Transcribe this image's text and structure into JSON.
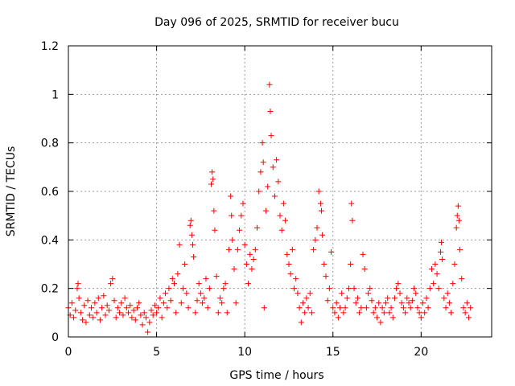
{
  "chart_data": {
    "type": "scatter",
    "title": "Day 096 of 2025, SRMTID for receiver bucu",
    "xlabel": "GPS time / hours",
    "ylabel": "SRMTID / TECUs",
    "xlim": [
      0,
      24
    ],
    "ylim": [
      0,
      1.2
    ],
    "xticks": [
      0,
      5,
      10,
      15,
      20
    ],
    "xtick_labels": [
      "0",
      "5",
      "10",
      "15",
      "20"
    ],
    "yticks": [
      0,
      0.2,
      0.4,
      0.6,
      0.8,
      1.0,
      1.2
    ],
    "ytick_labels": [
      "0",
      "0.2",
      "0.4",
      "0.6",
      "0.8",
      "1",
      "1.2"
    ],
    "grid": true,
    "marker": "+",
    "color": "#ff0000",
    "series": [
      {
        "name": "SRMTID",
        "points": [
          [
            0.0,
            0.12
          ],
          [
            0.1,
            0.09
          ],
          [
            0.2,
            0.14
          ],
          [
            0.3,
            0.08
          ],
          [
            0.4,
            0.11
          ],
          [
            0.5,
            0.2
          ],
          [
            0.55,
            0.22
          ],
          [
            0.6,
            0.16
          ],
          [
            0.7,
            0.1
          ],
          [
            0.8,
            0.07
          ],
          [
            0.9,
            0.13
          ],
          [
            1.0,
            0.06
          ],
          [
            1.1,
            0.15
          ],
          [
            1.2,
            0.09
          ],
          [
            1.3,
            0.12
          ],
          [
            1.4,
            0.08
          ],
          [
            1.5,
            0.14
          ],
          [
            1.6,
            0.1
          ],
          [
            1.7,
            0.16
          ],
          [
            1.8,
            0.07
          ],
          [
            1.9,
            0.12
          ],
          [
            2.0,
            0.17
          ],
          [
            2.1,
            0.09
          ],
          [
            2.2,
            0.13
          ],
          [
            2.3,
            0.11
          ],
          [
            2.4,
            0.22
          ],
          [
            2.5,
            0.24
          ],
          [
            2.6,
            0.15
          ],
          [
            2.7,
            0.08
          ],
          [
            2.8,
            0.12
          ],
          [
            2.9,
            0.1
          ],
          [
            3.0,
            0.14
          ],
          [
            3.1,
            0.09
          ],
          [
            3.2,
            0.16
          ],
          [
            3.3,
            0.12
          ],
          [
            3.4,
            0.1
          ],
          [
            3.5,
            0.13
          ],
          [
            3.6,
            0.08
          ],
          [
            3.7,
            0.11
          ],
          [
            3.8,
            0.07
          ],
          [
            3.9,
            0.12
          ],
          [
            4.0,
            0.14
          ],
          [
            4.1,
            0.09
          ],
          [
            4.2,
            0.05
          ],
          [
            4.3,
            0.1
          ],
          [
            4.4,
            0.08
          ],
          [
            4.5,
            0.02
          ],
          [
            4.6,
            0.06
          ],
          [
            4.7,
            0.11
          ],
          [
            4.8,
            0.09
          ],
          [
            4.9,
            0.13
          ],
          [
            5.0,
            0.1
          ],
          [
            5.1,
            0.12
          ],
          [
            5.2,
            0.16
          ],
          [
            5.3,
            0.08
          ],
          [
            5.4,
            0.14
          ],
          [
            5.5,
            0.18
          ],
          [
            5.6,
            0.12
          ],
          [
            5.7,
            0.2
          ],
          [
            5.8,
            0.15
          ],
          [
            5.9,
            0.24
          ],
          [
            6.0,
            0.22
          ],
          [
            6.1,
            0.1
          ],
          [
            6.2,
            0.26
          ],
          [
            6.3,
            0.38
          ],
          [
            6.4,
            0.14
          ],
          [
            6.5,
            0.2
          ],
          [
            6.6,
            0.3
          ],
          [
            6.7,
            0.18
          ],
          [
            6.8,
            0.12
          ],
          [
            6.9,
            0.46
          ],
          [
            6.95,
            0.48
          ],
          [
            7.0,
            0.42
          ],
          [
            7.05,
            0.38
          ],
          [
            7.1,
            0.33
          ],
          [
            7.2,
            0.1
          ],
          [
            7.3,
            0.15
          ],
          [
            7.4,
            0.22
          ],
          [
            7.5,
            0.18
          ],
          [
            7.6,
            0.14
          ],
          [
            7.7,
            0.16
          ],
          [
            7.8,
            0.24
          ],
          [
            7.9,
            0.12
          ],
          [
            8.0,
            0.2
          ],
          [
            8.1,
            0.63
          ],
          [
            8.15,
            0.68
          ],
          [
            8.2,
            0.65
          ],
          [
            8.25,
            0.52
          ],
          [
            8.3,
            0.44
          ],
          [
            8.4,
            0.25
          ],
          [
            8.5,
            0.1
          ],
          [
            8.6,
            0.16
          ],
          [
            8.7,
            0.14
          ],
          [
            8.8,
            0.2
          ],
          [
            8.9,
            0.22
          ],
          [
            9.0,
            0.1
          ],
          [
            9.1,
            0.36
          ],
          [
            9.2,
            0.58
          ],
          [
            9.25,
            0.5
          ],
          [
            9.3,
            0.4
          ],
          [
            9.4,
            0.28
          ],
          [
            9.5,
            0.14
          ],
          [
            9.6,
            0.36
          ],
          [
            9.7,
            0.44
          ],
          [
            9.8,
            0.5
          ],
          [
            9.9,
            0.55
          ],
          [
            10.0,
            0.38
          ],
          [
            10.1,
            0.3
          ],
          [
            10.2,
            0.22
          ],
          [
            10.3,
            0.34
          ],
          [
            10.4,
            0.28
          ],
          [
            10.5,
            0.32
          ],
          [
            10.6,
            0.36
          ],
          [
            10.7,
            0.45
          ],
          [
            10.8,
            0.6
          ],
          [
            10.9,
            0.68
          ],
          [
            11.0,
            0.8
          ],
          [
            11.05,
            0.72
          ],
          [
            11.1,
            0.12
          ],
          [
            11.2,
            0.52
          ],
          [
            11.3,
            0.62
          ],
          [
            11.4,
            1.04
          ],
          [
            11.45,
            0.93
          ],
          [
            11.5,
            0.83
          ],
          [
            11.6,
            0.7
          ],
          [
            11.7,
            0.58
          ],
          [
            11.8,
            0.73
          ],
          [
            11.9,
            0.64
          ],
          [
            12.0,
            0.5
          ],
          [
            12.1,
            0.44
          ],
          [
            12.2,
            0.55
          ],
          [
            12.3,
            0.48
          ],
          [
            12.4,
            0.34
          ],
          [
            12.5,
            0.3
          ],
          [
            12.6,
            0.26
          ],
          [
            12.7,
            0.36
          ],
          [
            12.8,
            0.2
          ],
          [
            12.9,
            0.24
          ],
          [
            13.0,
            0.18
          ],
          [
            13.1,
            0.12
          ],
          [
            13.2,
            0.06
          ],
          [
            13.3,
            0.14
          ],
          [
            13.4,
            0.1
          ],
          [
            13.5,
            0.16
          ],
          [
            13.6,
            0.12
          ],
          [
            13.7,
            0.18
          ],
          [
            13.8,
            0.1
          ],
          [
            13.9,
            0.36
          ],
          [
            14.0,
            0.4
          ],
          [
            14.1,
            0.45
          ],
          [
            14.2,
            0.6
          ],
          [
            14.3,
            0.55
          ],
          [
            14.35,
            0.52
          ],
          [
            14.4,
            0.42
          ],
          [
            14.5,
            0.3
          ],
          [
            14.6,
            0.25
          ],
          [
            14.7,
            0.15
          ],
          [
            14.8,
            0.2
          ],
          [
            14.9,
            0.35
          ],
          [
            15.0,
            0.12
          ],
          [
            15.1,
            0.1
          ],
          [
            15.2,
            0.14
          ],
          [
            15.3,
            0.08
          ],
          [
            15.4,
            0.12
          ],
          [
            15.5,
            0.18
          ],
          [
            15.6,
            0.1
          ],
          [
            15.7,
            0.12
          ],
          [
            15.8,
            0.16
          ],
          [
            15.9,
            0.2
          ],
          [
            16.0,
            0.3
          ],
          [
            16.05,
            0.55
          ],
          [
            16.1,
            0.48
          ],
          [
            16.2,
            0.2
          ],
          [
            16.3,
            0.14
          ],
          [
            16.4,
            0.16
          ],
          [
            16.5,
            0.1
          ],
          [
            16.6,
            0.12
          ],
          [
            16.7,
            0.34
          ],
          [
            16.8,
            0.28
          ],
          [
            16.9,
            0.12
          ],
          [
            17.0,
            0.18
          ],
          [
            17.1,
            0.2
          ],
          [
            17.2,
            0.15
          ],
          [
            17.3,
            0.1
          ],
          [
            17.4,
            0.12
          ],
          [
            17.5,
            0.08
          ],
          [
            17.6,
            0.14
          ],
          [
            17.7,
            0.06
          ],
          [
            17.8,
            0.12
          ],
          [
            17.9,
            0.1
          ],
          [
            18.0,
            0.14
          ],
          [
            18.1,
            0.16
          ],
          [
            18.2,
            0.1
          ],
          [
            18.3,
            0.12
          ],
          [
            18.4,
            0.08
          ],
          [
            18.5,
            0.16
          ],
          [
            18.6,
            0.2
          ],
          [
            18.7,
            0.22
          ],
          [
            18.8,
            0.18
          ],
          [
            18.9,
            0.14
          ],
          [
            19.0,
            0.12
          ],
          [
            19.1,
            0.1
          ],
          [
            19.2,
            0.16
          ],
          [
            19.3,
            0.14
          ],
          [
            19.4,
            0.12
          ],
          [
            19.5,
            0.15
          ],
          [
            19.6,
            0.2
          ],
          [
            19.7,
            0.18
          ],
          [
            19.8,
            0.12
          ],
          [
            19.9,
            0.1
          ],
          [
            20.0,
            0.08
          ],
          [
            20.1,
            0.14
          ],
          [
            20.2,
            0.1
          ],
          [
            20.3,
            0.16
          ],
          [
            20.4,
            0.12
          ],
          [
            20.5,
            0.2
          ],
          [
            20.6,
            0.28
          ],
          [
            20.7,
            0.22
          ],
          [
            20.8,
            0.3
          ],
          [
            20.9,
            0.26
          ],
          [
            21.0,
            0.2
          ],
          [
            21.1,
            0.35
          ],
          [
            21.15,
            0.39
          ],
          [
            21.2,
            0.32
          ],
          [
            21.3,
            0.16
          ],
          [
            21.4,
            0.12
          ],
          [
            21.5,
            0.18
          ],
          [
            21.6,
            0.14
          ],
          [
            21.7,
            0.1
          ],
          [
            21.8,
            0.22
          ],
          [
            21.9,
            0.3
          ],
          [
            22.0,
            0.45
          ],
          [
            22.05,
            0.5
          ],
          [
            22.1,
            0.54
          ],
          [
            22.15,
            0.48
          ],
          [
            22.2,
            0.36
          ],
          [
            22.3,
            0.24
          ],
          [
            22.4,
            0.12
          ],
          [
            22.5,
            0.1
          ],
          [
            22.6,
            0.14
          ],
          [
            22.7,
            0.08
          ],
          [
            22.8,
            0.12
          ]
        ]
      }
    ]
  }
}
